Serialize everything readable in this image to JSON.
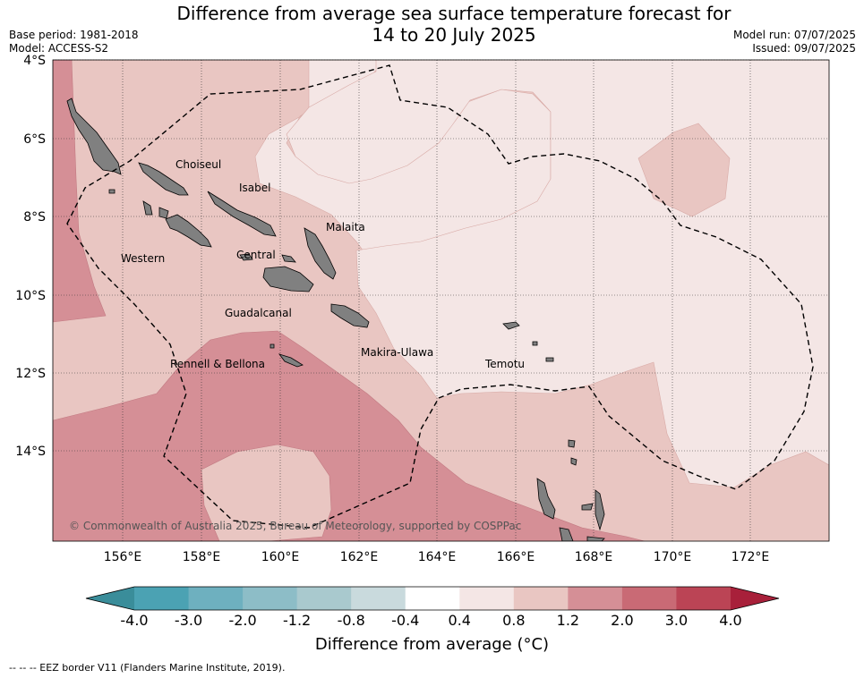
{
  "header": {
    "title_line1": "Difference from average sea surface temperature forecast for",
    "title_line2": "14 to 20 July 2025",
    "base_period": "Base period: 1981-2018",
    "model": "Model: ACCESS-S2",
    "model_run": "Model run: 07/07/2025",
    "issued": "Issued: 09/07/2025"
  },
  "map": {
    "lon_ticks": [
      "156°E",
      "158°E",
      "160°E",
      "162°E",
      "164°E",
      "166°E",
      "168°E",
      "170°E",
      "172°E"
    ],
    "lat_ticks": [
      "4°S",
      "6°S",
      "8°S",
      "10°S",
      "12°S",
      "14°S"
    ],
    "extent": {
      "lon_min": 154.2,
      "lon_max": 174.0,
      "lat_min": -16.3,
      "lat_max": -4.0
    },
    "gridlines": true,
    "provinces": [
      {
        "name": "Choiseul",
        "lon": 156.9,
        "lat": -7.0
      },
      {
        "name": "Isabel",
        "lon": 159.0,
        "lat": -7.6
      },
      {
        "name": "Malaita",
        "lon": 161.2,
        "lat": -8.4
      },
      {
        "name": "Western",
        "lon": 156.1,
        "lat": -9.2
      },
      {
        "name": "Central",
        "lon": 159.0,
        "lat": -9.1
      },
      {
        "name": "Guadalcanal",
        "lon": 158.9,
        "lat": -10.6
      },
      {
        "name": "Makira-Ulawa",
        "lon": 162.1,
        "lat": -11.6
      },
      {
        "name": "Rennell & Bellona",
        "lon": 157.3,
        "lat": -11.9
      },
      {
        "name": "Temotu",
        "lon": 165.6,
        "lat": -11.8
      }
    ],
    "copyright": "© Commonwealth of Australia 2025, Bureau of Meteorology, supported by COSPPac"
  },
  "colorbar": {
    "title": "Difference from average (°C)",
    "ticks": [
      "-4.0",
      "-3.0",
      "-2.0",
      "-1.2",
      "-0.8",
      "-0.4",
      "0.4",
      "0.8",
      "1.2",
      "2.0",
      "3.0",
      "4.0"
    ],
    "colors": [
      "#3a8d9a",
      "#4ba2b3",
      "#6eb0bf",
      "#8dbdc7",
      "#a9c9ce",
      "#c9dadd",
      "#ffffff",
      "#f4e6e5",
      "#e9c6c2",
      "#d58f96",
      "#c96a75",
      "#bb4455",
      "#a8203a"
    ]
  },
  "footnote": "--  --  -- EEZ border V11 (Flanders Marine Institute, 2019)."
}
